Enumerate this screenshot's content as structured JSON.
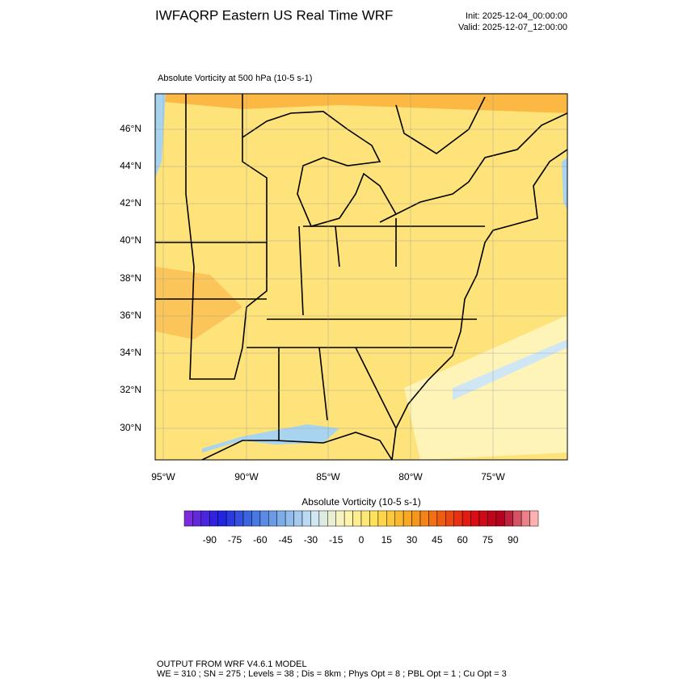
{
  "header": {
    "title": "IWFAQRP Eastern US Real Time WRF",
    "init": "Init: 2025-12-04_00:00:00",
    "valid": "Valid: 2025-12-07_12:00:00"
  },
  "map": {
    "subtitle": "Absolute Vorticity at 500 hPa   (10-5 s-1)",
    "lat_labels": [
      "46°N",
      "44°N",
      "42°N",
      "40°N",
      "38°N",
      "36°N",
      "34°N",
      "32°N",
      "30°N"
    ],
    "lon_labels": [
      "95°W",
      "90°W",
      "85°W",
      "80°W",
      "75°W"
    ]
  },
  "colorbar": {
    "title": "Absolute Vorticity  (10-5 s-1)",
    "range": [
      -105,
      105
    ],
    "ticks": [
      -90,
      -75,
      -60,
      -45,
      -30,
      -15,
      0,
      15,
      30,
      45,
      60,
      75,
      90
    ]
  },
  "footer": {
    "line1": "OUTPUT FROM WRF V4.6.1 MODEL",
    "line2": "WE = 310 ; SN = 275 ; Levels = 38 ; Dis = 8km ; Phys Opt = 8 ; PBL Opt = 1 ; Cu Opt = 3"
  }
}
